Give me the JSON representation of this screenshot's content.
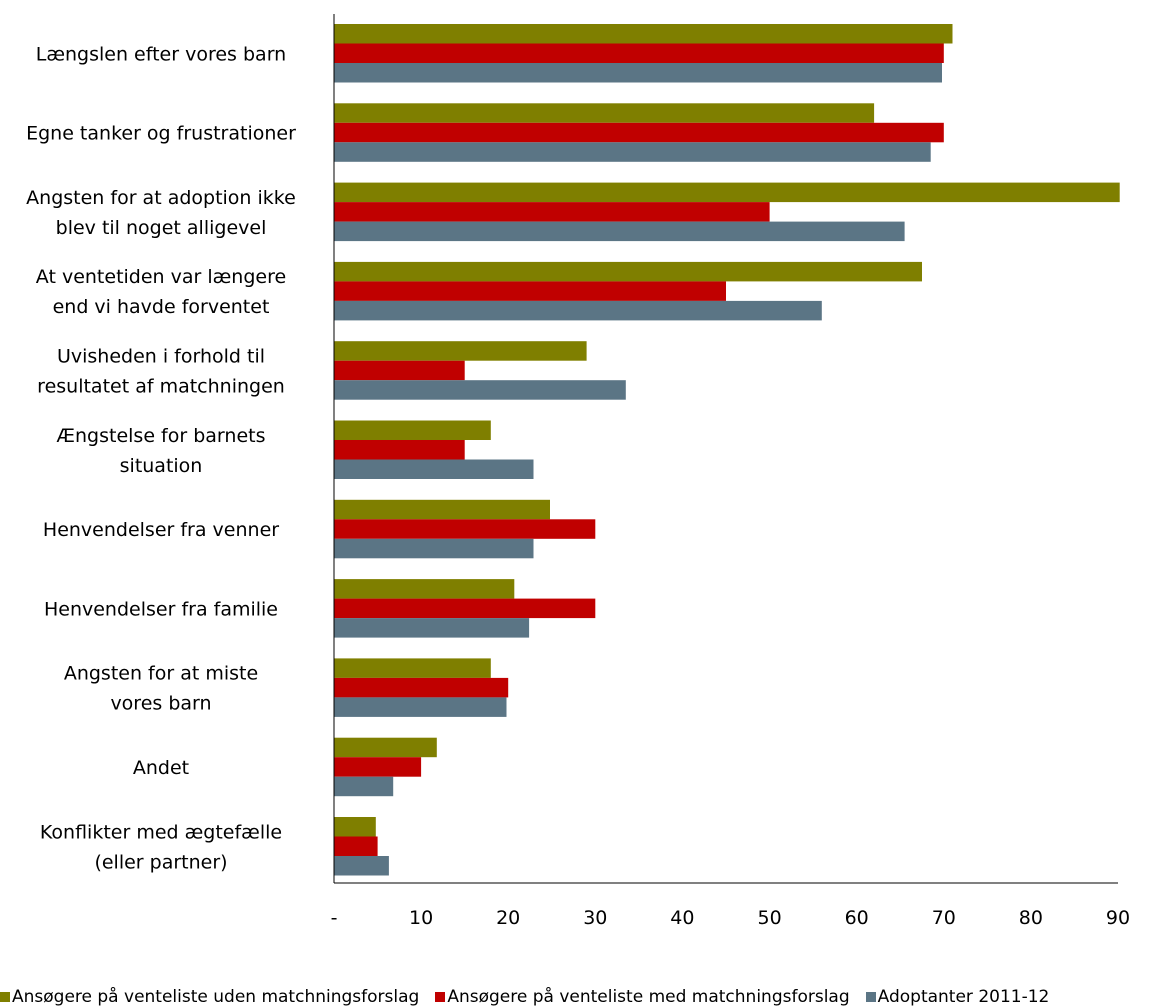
{
  "chart_data": {
    "type": "bar",
    "orientation": "horizontal",
    "categories": [
      "Længslen efter vores barn",
      "Egne tanker og frustrationer",
      "Angsten for at adoption ikke blev til noget alligevel",
      "At ventetiden var længere end vi havde forventet",
      "Uvisheden i forhold til resultatet af matchningen",
      "Ængstelse for barnets situation",
      "Henvendelser fra venner",
      "Henvendelser fra familie",
      "Angsten for at miste vores barn",
      "Andet",
      "Konflikter med ægtefælle (eller partner)"
    ],
    "category_lines": [
      [
        "Længslen efter vores barn"
      ],
      [
        "Egne tanker og frustrationer"
      ],
      [
        "Angsten for at adoption ikke",
        "blev til noget alligevel"
      ],
      [
        "At ventetiden var længere",
        "end vi havde forventet"
      ],
      [
        "Uvisheden i forhold til",
        "resultatet af matchningen"
      ],
      [
        "Ængstelse for barnets",
        "situation"
      ],
      [
        "Henvendelser fra venner"
      ],
      [
        "Henvendelser fra familie"
      ],
      [
        "Angsten for at miste",
        "vores barn"
      ],
      [
        "Andet"
      ],
      [
        "Konflikter med ægtefælle",
        "(eller partner)"
      ]
    ],
    "series": [
      {
        "name": "Ansøgere på venteliste uden matchningsforslag",
        "color": "#7f7f00",
        "values": [
          71,
          62,
          90.2,
          67.5,
          29,
          18,
          24.8,
          20.7,
          18,
          11.8,
          4.8
        ]
      },
      {
        "name": "Ansøgere på venteliste med matchningsforslag",
        "color": "#c00000",
        "values": [
          70,
          70,
          50,
          45,
          15,
          15,
          30,
          30,
          20,
          10,
          5
        ]
      },
      {
        "name": "Adoptanter 2011-12",
        "color": "#5b7585",
        "values": [
          69.8,
          68.5,
          65.5,
          56,
          33.5,
          22.9,
          22.9,
          22.4,
          19.8,
          6.8,
          6.3
        ]
      }
    ],
    "x_ticks": [
      "-",
      "10",
      "20",
      "30",
      "40",
      "50",
      "60",
      "70",
      "80",
      "90"
    ],
    "xlim": [
      0,
      90
    ],
    "grid": false,
    "legend_position": "bottom"
  }
}
